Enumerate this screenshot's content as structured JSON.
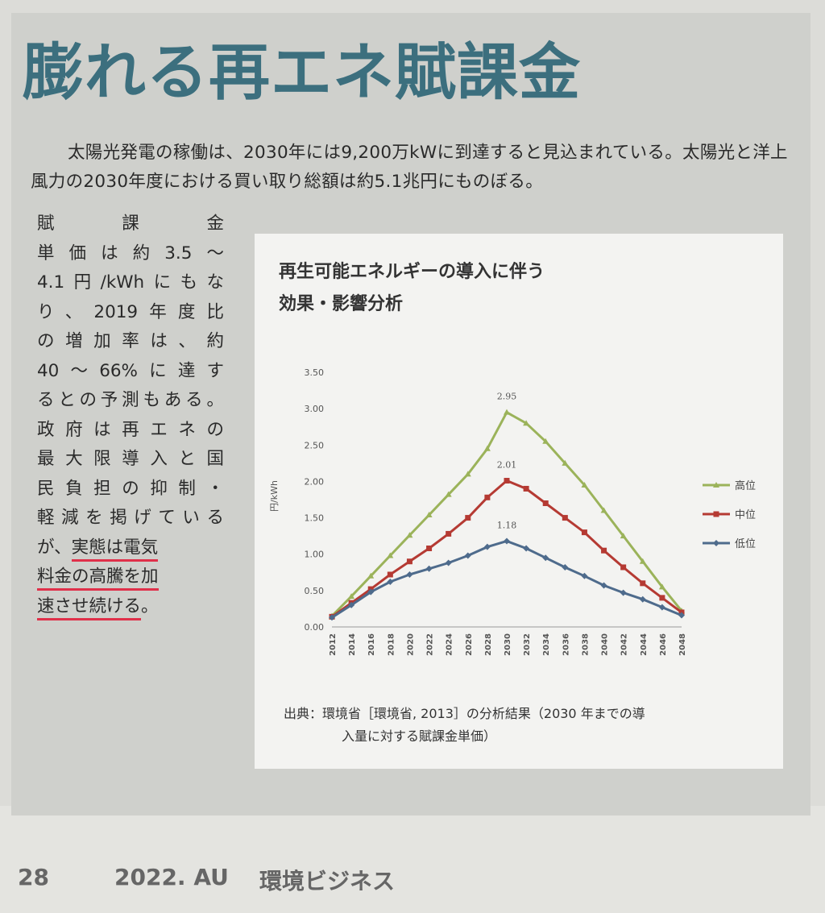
{
  "headline": "膨れる再エネ賦課金",
  "intro": "太陽光発電の稼働は、2030年には9,200万kWに到達すると見込まれている。太陽光と洋上風力の2030年度における買い取り総額は約5.1兆円にものぼる。",
  "column_lines": [
    "賦課金",
    "単価は約3.5〜",
    "4.1円/kWhにもな",
    "り、2019年度比",
    "の増加率は、約",
    "40〜66%に達す",
    "るとの予測もある。",
    "政府は再エネの",
    "最大限導入と国",
    "民負担の抑制・",
    "軽減を掲げている",
    "が、",
    "実態は電気",
    "料金の高騰を加",
    "速させ続ける",
    "。"
  ],
  "figure": {
    "title_line1": "再生可能エネルギーの導入に伴う",
    "title_line2": "効果・影響分析",
    "source_line1": "出典：環境省［環境省, 2013］の分析結果（2030 年までの導",
    "source_line2": "入量に対する賦課金単価）"
  },
  "chart_data": {
    "type": "line",
    "ylabel": "円/kWh",
    "ylim": [
      0,
      3.5
    ],
    "y_ticks": [
      "0.00",
      "0.50",
      "1.00",
      "1.50",
      "2.00",
      "2.50",
      "3.00",
      "3.50"
    ],
    "x": [
      "2012",
      "2014",
      "2016",
      "2018",
      "2020",
      "2022",
      "2024",
      "2026",
      "2028",
      "2030",
      "2032",
      "2034",
      "2036",
      "2038",
      "2040",
      "2042",
      "2044",
      "2046",
      "2048"
    ],
    "legend_position": "right",
    "grid": false,
    "series": [
      {
        "name": "高位",
        "color": "#9bb35a",
        "values": [
          0.15,
          0.42,
          0.7,
          0.98,
          1.26,
          1.54,
          1.82,
          2.1,
          2.45,
          2.95,
          2.8,
          2.55,
          2.25,
          1.95,
          1.6,
          1.25,
          0.9,
          0.55,
          0.22
        ]
      },
      {
        "name": "中位",
        "color": "#b53a33",
        "values": [
          0.14,
          0.33,
          0.52,
          0.72,
          0.9,
          1.08,
          1.28,
          1.5,
          1.78,
          2.01,
          1.9,
          1.7,
          1.5,
          1.3,
          1.05,
          0.82,
          0.6,
          0.4,
          0.2
        ]
      },
      {
        "name": "低位",
        "color": "#4e6b8c",
        "values": [
          0.13,
          0.3,
          0.48,
          0.62,
          0.72,
          0.8,
          0.88,
          0.98,
          1.1,
          1.18,
          1.08,
          0.95,
          0.82,
          0.7,
          0.57,
          0.47,
          0.38,
          0.27,
          0.16
        ]
      }
    ],
    "peak_labels": [
      "2.95",
      "2.01",
      "1.18"
    ]
  },
  "footer": {
    "page": "28",
    "issue": "2022. AU",
    "magazine": "環境ビジネス"
  }
}
